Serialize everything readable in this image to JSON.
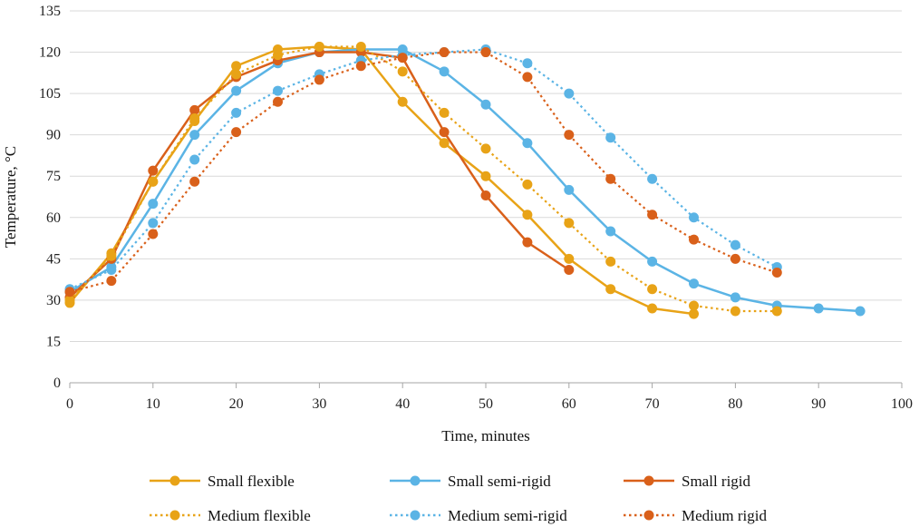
{
  "chart_data": {
    "type": "line",
    "title": "",
    "xlabel": "Time, minutes",
    "ylabel": "Temperature, °C",
    "xlim": [
      0,
      100
    ],
    "ylim": [
      0,
      135
    ],
    "xticks": [
      0,
      10,
      20,
      30,
      40,
      50,
      60,
      70,
      80,
      90,
      100
    ],
    "yticks": [
      0,
      15,
      30,
      45,
      60,
      75,
      90,
      105,
      120,
      135
    ],
    "grid": "horizontal",
    "legend_position": "bottom",
    "series": [
      {
        "name": "Small flexible",
        "color": "#E8A317",
        "style": "solid",
        "x": [
          0,
          5,
          10,
          15,
          20,
          25,
          30,
          35,
          40,
          45,
          50,
          55,
          60,
          65,
          70,
          75
        ],
        "y": [
          29,
          47,
          73,
          95,
          115,
          121,
          122,
          121,
          102,
          87,
          75,
          61,
          45,
          34,
          27,
          25
        ]
      },
      {
        "name": "Small semi-rigid",
        "color": "#5BB4E5",
        "style": "solid",
        "x": [
          0,
          5,
          10,
          15,
          20,
          25,
          30,
          35,
          40,
          45,
          50,
          55,
          60,
          65,
          70,
          75,
          80,
          85,
          90,
          95
        ],
        "y": [
          33,
          42,
          65,
          90,
          106,
          116,
          120,
          121,
          121,
          113,
          101,
          87,
          70,
          55,
          44,
          36,
          31,
          28,
          27,
          26
        ]
      },
      {
        "name": "Small rigid",
        "color": "#D9601A",
        "style": "solid",
        "x": [
          0,
          5,
          10,
          15,
          20,
          25,
          30,
          35,
          40,
          45,
          50,
          55,
          60
        ],
        "y": [
          31,
          45,
          77,
          99,
          111,
          117,
          120,
          120,
          118,
          91,
          68,
          51,
          41
        ]
      },
      {
        "name": "Medium flexible",
        "color": "#E8A317",
        "style": "dotted",
        "x": [
          0,
          5,
          10,
          15,
          20,
          25,
          30,
          35,
          40,
          45,
          50,
          55,
          60,
          65,
          70,
          75,
          80,
          85
        ],
        "y": [
          30,
          46,
          73,
          96,
          112,
          119,
          122,
          122,
          113,
          98,
          85,
          72,
          58,
          44,
          34,
          28,
          26,
          26
        ]
      },
      {
        "name": "Medium semi-rigid",
        "color": "#5BB4E5",
        "style": "dotted",
        "x": [
          0,
          5,
          10,
          15,
          20,
          25,
          30,
          35,
          40,
          45,
          50,
          55,
          60,
          65,
          70,
          75,
          80,
          85
        ],
        "y": [
          34,
          41,
          58,
          81,
          98,
          106,
          112,
          117,
          119,
          120,
          121,
          116,
          105,
          89,
          74,
          60,
          50,
          42
        ]
      },
      {
        "name": "Medium rigid",
        "color": "#D9601A",
        "style": "dotted",
        "x": [
          0,
          5,
          10,
          15,
          20,
          25,
          30,
          35,
          40,
          45,
          50,
          55,
          60,
          65,
          70,
          75,
          80,
          85
        ],
        "y": [
          33,
          37,
          54,
          73,
          91,
          102,
          110,
          115,
          118,
          120,
          120,
          111,
          90,
          74,
          61,
          52,
          45,
          40
        ]
      }
    ]
  }
}
